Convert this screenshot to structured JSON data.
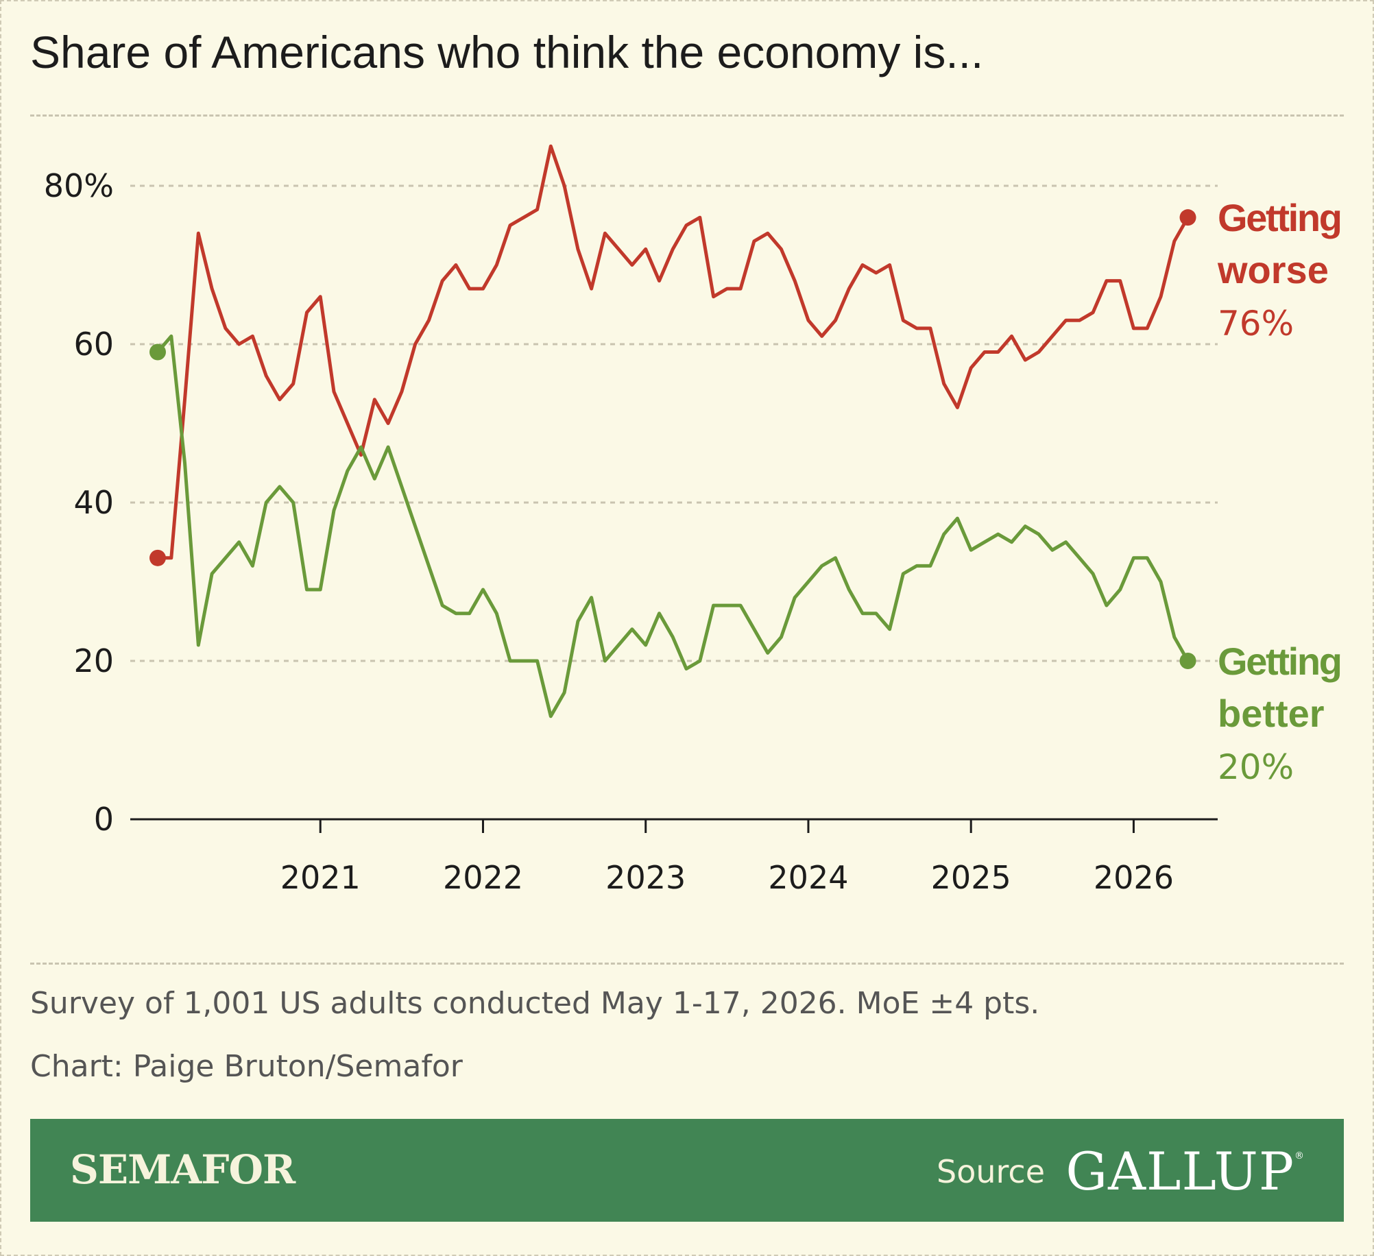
{
  "title": "Share of Americans who think the economy is...",
  "note": "Survey of 1,001 US adults conducted May 1-17, 2026. MoE ±4 pts.",
  "credit": "Chart: Paige Bruton/Semafor",
  "footer": {
    "brand": "SEMAFOR",
    "source_label": "Source",
    "source_name": "GALLUP"
  },
  "chart_data": {
    "type": "line",
    "x_start": "2020-01",
    "x_interval": "month",
    "ylim": [
      0,
      89
    ],
    "y_ticks": [
      0,
      20,
      40,
      60,
      80
    ],
    "y_tick_labels": [
      "0",
      "20",
      "40",
      "60",
      "80%"
    ],
    "x_ticks": [
      "2021",
      "2022",
      "2023",
      "2024",
      "2025",
      "2026"
    ],
    "grid": true,
    "legend": "direct labels at right end of lines",
    "series": [
      {
        "name": "Getting worse",
        "label_lines": [
          "Getting",
          "worse"
        ],
        "end_label": "76%",
        "color": "#c1392b",
        "values": [
          33,
          33,
          53,
          74,
          67,
          62,
          60,
          61,
          56,
          53,
          55,
          64,
          66,
          54,
          50,
          46,
          53,
          50,
          54,
          60,
          63,
          68,
          70,
          67,
          67,
          70,
          75,
          76,
          77,
          85,
          80,
          72,
          67,
          74,
          72,
          70,
          72,
          68,
          72,
          75,
          76,
          66,
          67,
          67,
          73,
          74,
          72,
          68,
          63,
          61,
          63,
          67,
          70,
          69,
          70,
          63,
          62,
          62,
          55,
          52,
          57,
          59,
          59,
          61,
          58,
          59,
          61,
          63,
          63,
          64,
          68,
          68,
          62,
          62,
          66,
          73,
          76
        ]
      },
      {
        "name": "Getting better",
        "label_lines": [
          "Getting",
          "better"
        ],
        "end_label": "20%",
        "color": "#6a9a3a",
        "values": [
          59,
          61,
          45,
          22,
          31,
          33,
          35,
          32,
          40,
          42,
          40,
          29,
          29,
          39,
          44,
          47,
          43,
          47,
          42,
          37,
          32,
          27,
          26,
          26,
          29,
          26,
          20,
          20,
          20,
          13,
          16,
          25,
          28,
          20,
          22,
          24,
          22,
          26,
          23,
          19,
          20,
          27,
          27,
          27,
          24,
          21,
          23,
          28,
          30,
          32,
          33,
          29,
          26,
          26,
          24,
          31,
          32,
          32,
          36,
          38,
          34,
          35,
          36,
          35,
          37,
          36,
          34,
          35,
          33,
          31,
          27,
          29,
          33,
          33,
          30,
          23,
          20
        ]
      }
    ]
  }
}
